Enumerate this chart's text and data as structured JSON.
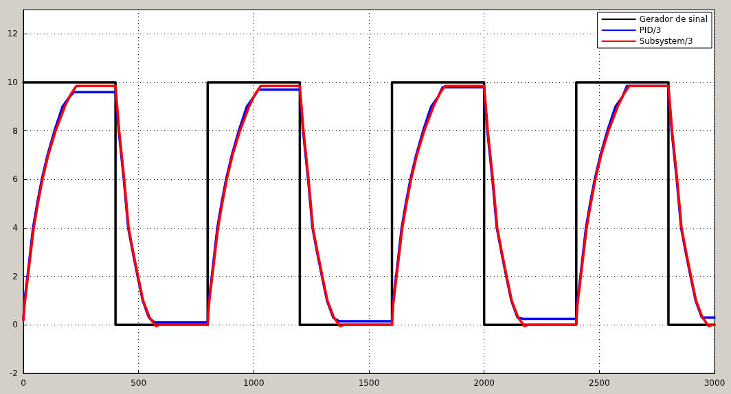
{
  "chart_data": {
    "type": "line",
    "xlim": [
      0,
      3000
    ],
    "xticks": [
      0,
      500,
      1000,
      1500,
      2000,
      2500,
      3000
    ],
    "ylim": [
      -2,
      13
    ],
    "yticks": [
      -2,
      0,
      2,
      4,
      6,
      8,
      10,
      12
    ],
    "grid": true,
    "legend": "top right",
    "marker": "none",
    "line_style": "solid",
    "series": [
      {
        "name": "Gerador de sinal",
        "type": "step",
        "color": "#000000",
        "x": [
          0,
          400,
          800,
          1200,
          1600,
          2000,
          2400,
          2800,
          3000
        ],
        "values": [
          10,
          0,
          10,
          0,
          10,
          0,
          10,
          0,
          0
        ]
      },
      {
        "name": "PID/3",
        "color": "#0000ff",
        "x": [
          0,
          5,
          18,
          42,
          60,
          80,
          105,
          135,
          170,
          200,
          220,
          400,
          414,
          436,
          455,
          475,
          496,
          518,
          545,
          570,
          800,
          805,
          818,
          842,
          860,
          880,
          905,
          935,
          970,
          1000,
          1020,
          1200,
          1214,
          1236,
          1255,
          1275,
          1296,
          1318,
          1345,
          1370,
          1600,
          1605,
          1618,
          1642,
          1660,
          1680,
          1705,
          1735,
          1770,
          1800,
          1820,
          2000,
          2014,
          2036,
          2055,
          2075,
          2096,
          2118,
          2145,
          2170,
          2400,
          2405,
          2418,
          2442,
          2460,
          2480,
          2505,
          2535,
          2570,
          2600,
          2620,
          2800,
          2814,
          2836,
          2855,
          2875,
          2896,
          2918,
          2945,
          2970,
          3000
        ],
        "values": [
          0.2,
          1.0,
          2,
          4,
          5,
          6,
          7,
          8,
          9,
          9.4,
          9.6,
          9.6,
          8,
          6,
          4,
          3,
          2,
          1,
          0.3,
          0.1,
          0.1,
          1.0,
          2,
          4,
          5,
          6,
          7,
          8,
          9,
          9.4,
          9.7,
          9.7,
          8,
          6,
          4,
          3,
          2,
          1,
          0.3,
          0.15,
          0.15,
          1.0,
          2,
          4,
          5,
          6,
          7,
          8,
          9,
          9.4,
          9.8,
          9.8,
          8,
          6,
          4,
          3,
          2,
          1,
          0.3,
          0.25,
          0.25,
          1.0,
          2,
          4,
          5,
          6,
          7,
          8,
          9,
          9.4,
          9.85,
          9.85,
          8,
          6,
          4,
          3,
          2,
          1,
          0.3,
          0.3,
          0.3
        ]
      },
      {
        "name": "Subsystem/3",
        "color": "#ff0000",
        "x": [
          0,
          5,
          20,
          45,
          63,
          83,
          108,
          140,
          180,
          205,
          230,
          400,
          416,
          438,
          457,
          477,
          498,
          520,
          548,
          575,
          590,
          800,
          805,
          820,
          845,
          863,
          883,
          908,
          940,
          980,
          1005,
          1030,
          1200,
          1216,
          1238,
          1257,
          1277,
          1298,
          1320,
          1348,
          1375,
          1390,
          1600,
          1605,
          1620,
          1645,
          1663,
          1683,
          1708,
          1740,
          1780,
          1805,
          1830,
          2000,
          2016,
          2038,
          2057,
          2077,
          2098,
          2120,
          2148,
          2175,
          2190,
          2400,
          2405,
          2420,
          2445,
          2463,
          2483,
          2508,
          2540,
          2580,
          2605,
          2630,
          2800,
          2816,
          2838,
          2857,
          2877,
          2898,
          2920,
          2948,
          2975,
          2990,
          3000
        ],
        "values": [
          0.2,
          0.8,
          2,
          4,
          5,
          6,
          7,
          8,
          9,
          9.5,
          9.85,
          9.85,
          8,
          6,
          4,
          3,
          2,
          1,
          0.3,
          -0.05,
          0,
          0,
          0.8,
          2,
          4,
          5,
          6,
          7,
          8,
          9,
          9.5,
          9.85,
          9.85,
          8,
          6,
          4,
          3,
          2,
          1,
          0.3,
          -0.05,
          0,
          0,
          0.8,
          2,
          4,
          5,
          6,
          7,
          8,
          9,
          9.5,
          9.85,
          9.85,
          8,
          6,
          4,
          3,
          2,
          1,
          0.3,
          -0.05,
          0,
          0,
          0.8,
          2,
          4,
          5,
          6,
          7,
          8,
          9,
          9.5,
          9.85,
          9.85,
          8,
          6,
          4,
          3,
          2,
          1,
          0.3,
          -0.05,
          0,
          0
        ]
      }
    ]
  }
}
